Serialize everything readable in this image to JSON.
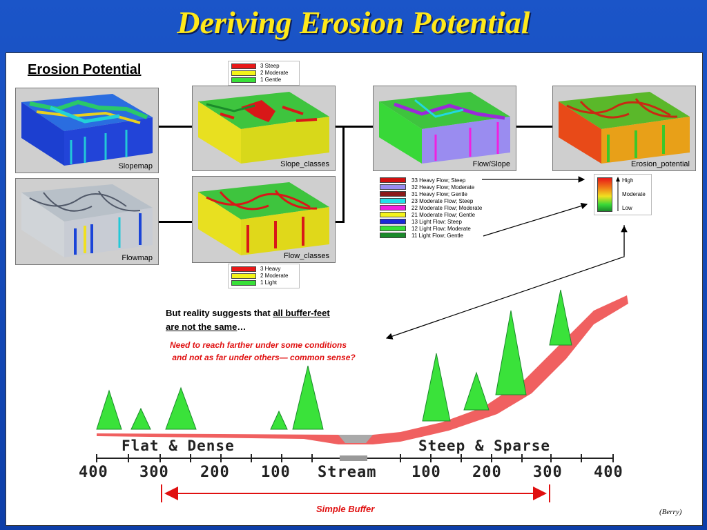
{
  "title": "Deriving Erosion Potential",
  "subtitle": "Erosion Potential",
  "maps": {
    "slopemap": "Slopemap",
    "flowmap": "Flowmap",
    "slope_classes": "Slope_classes",
    "flow_classes": "Flow_classes",
    "flow_slope": "Flow/Slope",
    "erosion_potential": "Erosion_potential"
  },
  "slope_legend": [
    {
      "label": "3 Steep",
      "color": "#e81818"
    },
    {
      "label": "2 Moderate",
      "color": "#f4f41a"
    },
    {
      "label": "1 Gentle",
      "color": "#38e038"
    }
  ],
  "flow_legend": [
    {
      "label": "3  Heavy",
      "color": "#e81818"
    },
    {
      "label": "2  Moderate",
      "color": "#f4f41a"
    },
    {
      "label": "1  Light",
      "color": "#38e038"
    }
  ],
  "flow_slope_legend": [
    {
      "label": "33 Heavy Flow; Steep",
      "color": "#d01010"
    },
    {
      "label": "32 Heavy Flow; Moderate",
      "color": "#9a8cf0"
    },
    {
      "label": "31 Heavy Flow; Gentle",
      "color": "#8a1a1a"
    },
    {
      "label": "23 Moderate Flow; Steep",
      "color": "#22e0e8"
    },
    {
      "label": "22 Moderate Flow; Moderate",
      "color": "#f020e0"
    },
    {
      "label": "21 Moderate Flow; Gentle",
      "color": "#f4f41a"
    },
    {
      "label": "13 Light Flow; Steep",
      "color": "#1a28d8"
    },
    {
      "label": "12 Light Flow; Moderate",
      "color": "#38e038"
    },
    {
      "label": "11 Light Flow; Gentle",
      "color": "#1a8a2a"
    }
  ],
  "erosion_legend": {
    "high": "High",
    "moderate": "Moderate",
    "low": "Low"
  },
  "reality": {
    "line1_prefix": "But reality suggests that ",
    "line1_underlined": "all buffer-feet",
    "line2_underlined": "are not the same",
    "line2_suffix": "…"
  },
  "conditions": {
    "line1": "Need to reach farther under some conditions",
    "line2": "and not as far under others— common sense?"
  },
  "diagram": {
    "flat_label": "Flat & Dense",
    "steep_label": "Steep & Sparse",
    "distances": [
      "400",
      "300",
      "200",
      "100",
      "Stream",
      "100",
      "200",
      "300",
      "400"
    ]
  },
  "buffer_label": "Simple Buffer",
  "credit": "(Berry)"
}
